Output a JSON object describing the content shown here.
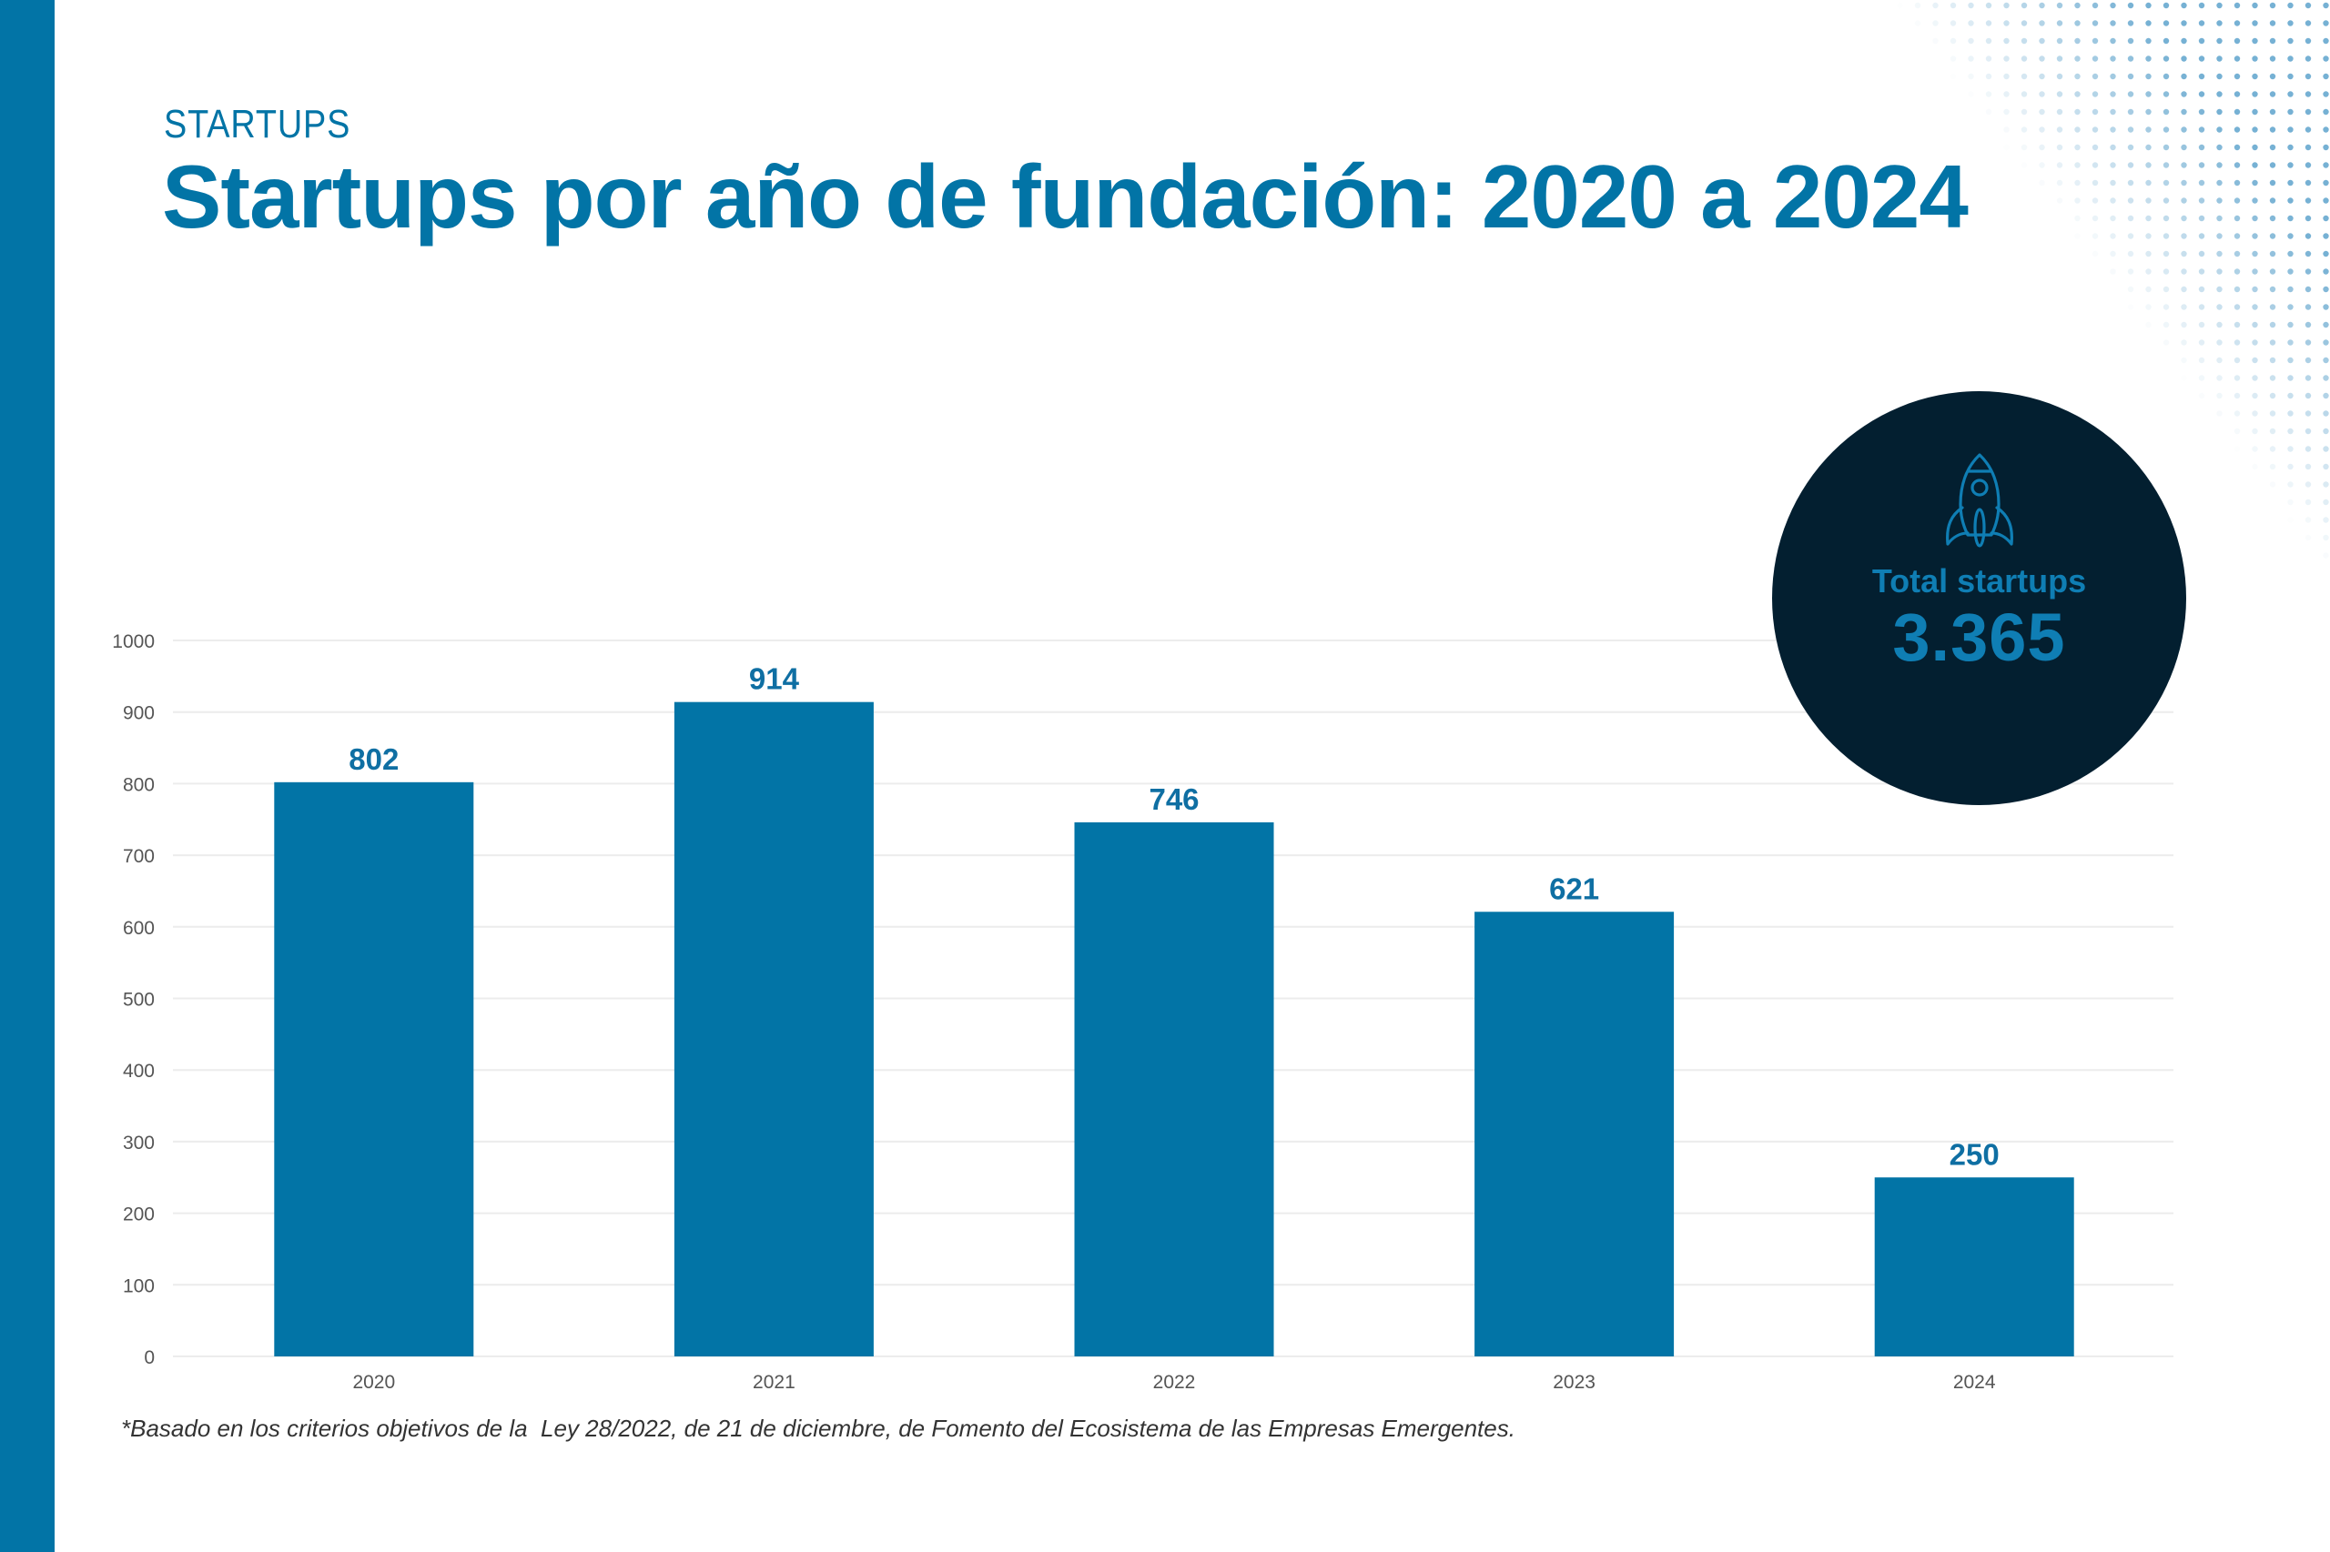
{
  "header": {
    "eyebrow": "STARTUPS",
    "title": "Startups por año de fundación: 2020 a 2024"
  },
  "kpi": {
    "icon": "rocket-icon",
    "label": "Total startups",
    "value": "3.365"
  },
  "footnote": "*Basado en los criterios objetivos de la  Ley 28/2022, de 21 de diciembre, de Fomento del Ecosistema de las Empresas Emergentes.",
  "colors": {
    "brand": "#0274a6",
    "bar": "#0274a6",
    "value_label": "#0f6fa3",
    "kpi_bg": "#031f30",
    "kpi_text": "#0f7eb4",
    "axis_text": "#555555",
    "grid": "#ececec"
  },
  "chart_data": {
    "type": "bar",
    "title": "Startups por año de fundación: 2020 a 2024",
    "xlabel": "",
    "ylabel": "",
    "categories": [
      "2020",
      "2021",
      "2022",
      "2023",
      "2024"
    ],
    "values": [
      802,
      914,
      746,
      621,
      250
    ],
    "value_labels": [
      "802",
      "914",
      "746",
      "621",
      "250"
    ],
    "ylim": [
      0,
      1000
    ],
    "yticks": [
      0,
      100,
      200,
      300,
      400,
      500,
      600,
      700,
      800,
      900,
      1000
    ],
    "grid": true,
    "legend": "none"
  }
}
